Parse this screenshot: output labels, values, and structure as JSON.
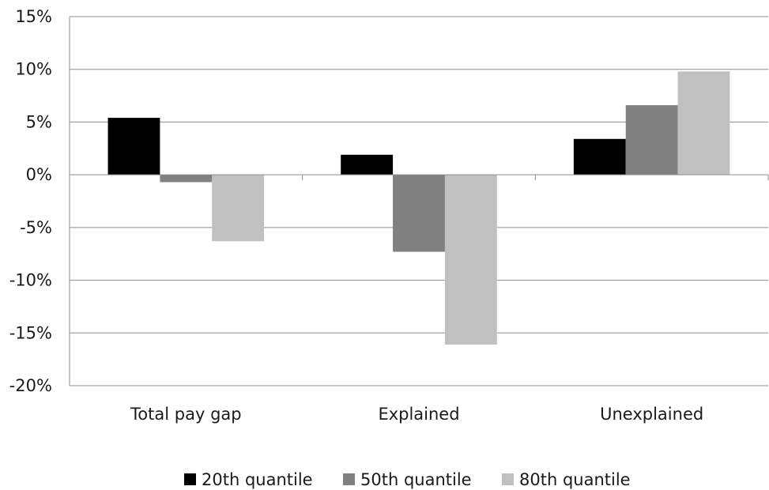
{
  "chart_data": {
    "type": "bar",
    "categories": [
      "Total pay gap",
      "Explained",
      "Unexplained"
    ],
    "series": [
      {
        "name": "20th quantile",
        "color": "#000000",
        "values": [
          5.4,
          1.9,
          3.4
        ]
      },
      {
        "name": "50th quantile",
        "color": "#808080",
        "values": [
          -0.7,
          -7.3,
          6.6
        ]
      },
      {
        "name": "80th quantile",
        "color": "#c0c0c0",
        "values": [
          -6.3,
          -16.1,
          9.8
        ]
      }
    ],
    "y_ticks": [
      "15%",
      "10%",
      "5%",
      "0%",
      "-5%",
      "-10%",
      "-15%",
      "-20%"
    ],
    "ylim": [
      -20,
      15
    ],
    "y_step": 5,
    "grid": true,
    "legend_position": "bottom"
  }
}
